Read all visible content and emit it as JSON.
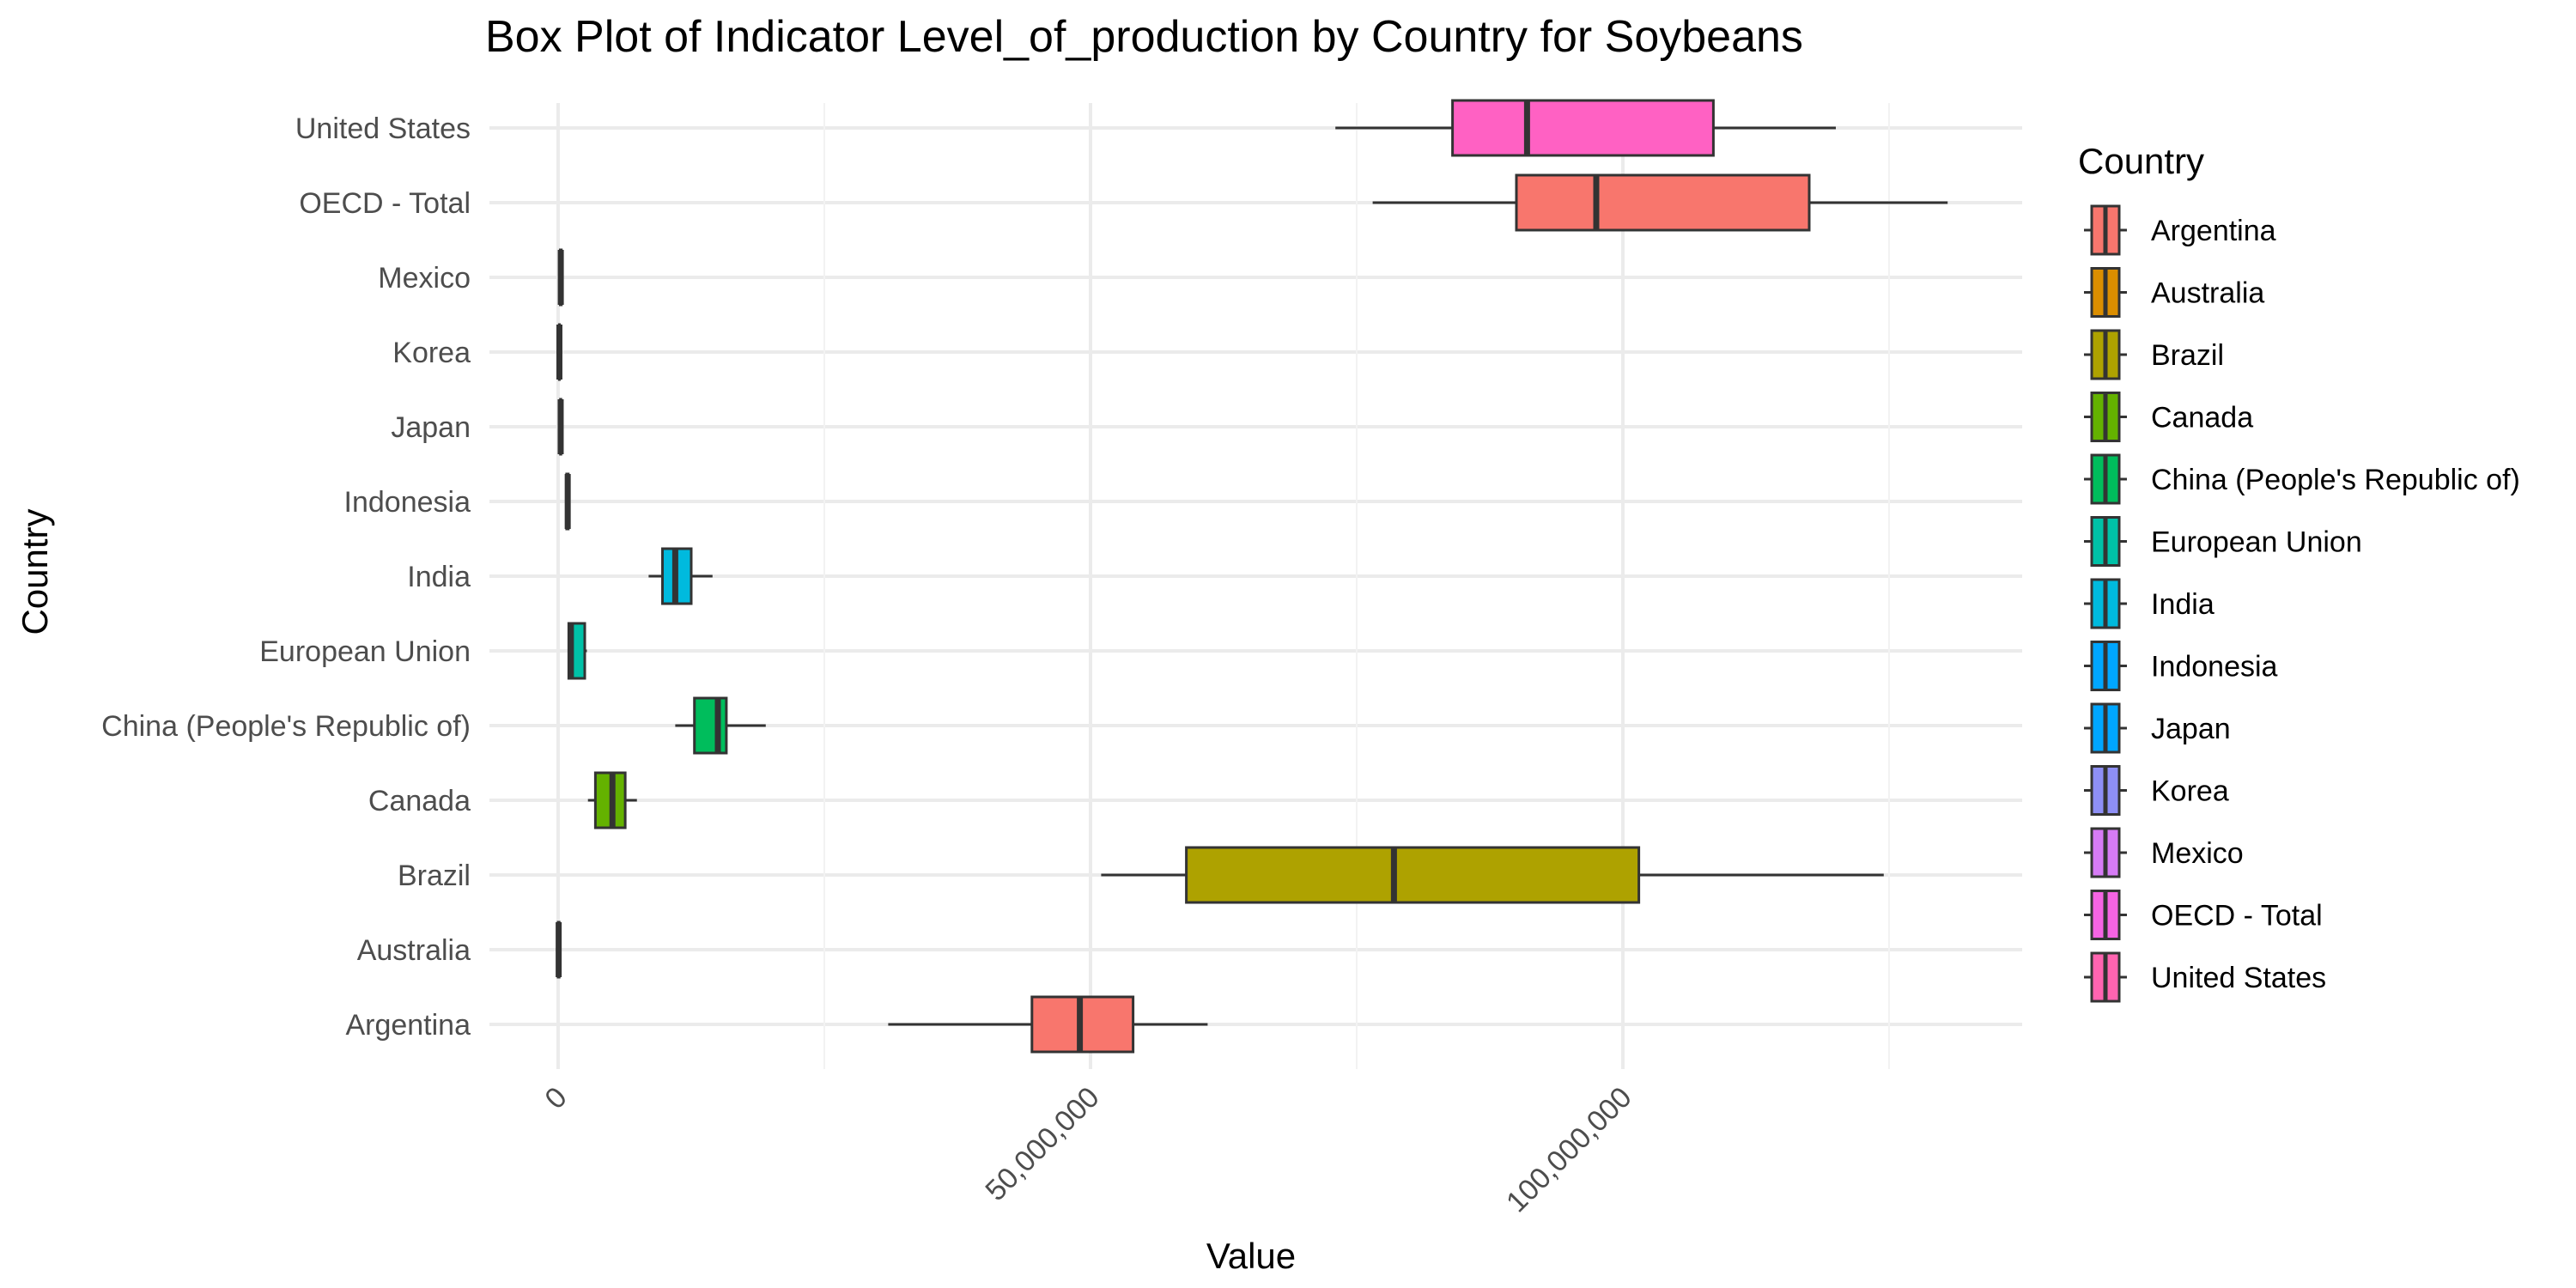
{
  "chart_data": {
    "type": "box",
    "title": "Box Plot of Indicator Level_of_production by Country for Soybeans",
    "xlabel": "Value",
    "ylabel": "Country",
    "xlim": [
      -5000000,
      137000000
    ],
    "x_ticks": [
      {
        "value": 0,
        "label": "0"
      },
      {
        "value": 50000000,
        "label": "50,000,000"
      },
      {
        "value": 100000000,
        "label": "100,000,000"
      }
    ],
    "x_minor_ticks": [
      25000000,
      75000000,
      125000000
    ],
    "grid": true,
    "legend": {
      "title": "Country",
      "position": "right"
    },
    "categories": [
      "Argentina",
      "Australia",
      "Brazil",
      "Canada",
      "China (People's Republic of)",
      "European Union",
      "India",
      "Indonesia",
      "Japan",
      "Korea",
      "Mexico",
      "OECD - Total",
      "United States"
    ],
    "series": [
      {
        "name": "Argentina",
        "color": "#F8766D",
        "min": 31000000,
        "q1": 44500000,
        "median": 49000000,
        "q3": 54000000,
        "max": 61000000
      },
      {
        "name": "Australia",
        "color": "#DB8E00",
        "min": 0,
        "q1": 0,
        "median": 50000,
        "q3": 100000,
        "max": 150000
      },
      {
        "name": "Brazil",
        "color": "#AEA200",
        "min": 51000000,
        "q1": 59000000,
        "median": 78500000,
        "q3": 101500000,
        "max": 124500000
      },
      {
        "name": "Canada",
        "color": "#64B200",
        "min": 2800000,
        "q1": 3500000,
        "median": 5100000,
        "q3": 6300000,
        "max": 7400000
      },
      {
        "name": "China (People's Republic of)",
        "color": "#00BD5C",
        "min": 11000000,
        "q1": 12800000,
        "median": 15000000,
        "q3": 15800000,
        "max": 19500000
      },
      {
        "name": "European Union",
        "color": "#00C1A7",
        "min": 1000000,
        "q1": 1000000,
        "median": 1200000,
        "q3": 2500000,
        "max": 2700000
      },
      {
        "name": "India",
        "color": "#00BADE",
        "min": 8500000,
        "q1": 9800000,
        "median": 11000000,
        "q3": 12500000,
        "max": 14500000
      },
      {
        "name": "Indonesia",
        "color": "#00A6FF",
        "min": 700000,
        "q1": 800000,
        "median": 900000,
        "q3": 950000,
        "max": 1000000
      },
      {
        "name": "Japan",
        "color": "#B385FF",
        "min": 200000,
        "q1": 220000,
        "median": 240000,
        "q3": 260000,
        "max": 280000
      },
      {
        "name": "Korea",
        "color": "#EF67EB",
        "min": 100000,
        "q1": 110000,
        "median": 120000,
        "q3": 130000,
        "max": 140000
      },
      {
        "name": "Mexico",
        "color": "#FF63B6",
        "min": 150000,
        "q1": 200000,
        "median": 250000,
        "q3": 300000,
        "max": 350000
      },
      {
        "name": "OECD - Total",
        "color": "#F8766D",
        "min": 76500000,
        "q1": 90000000,
        "median": 97500000,
        "q3": 117500000,
        "max": 130500000
      },
      {
        "name": "United States",
        "color": "#FF61C3",
        "min": 73000000,
        "q1": 84000000,
        "median": 91000000,
        "q3": 108500000,
        "max": 120000000
      }
    ],
    "legend_colors": [
      "#F8766D",
      "#DB8E00",
      "#AEA200",
      "#64B200",
      "#00BD5C",
      "#00C1A7",
      "#00BADE",
      "#00A6FF",
      "#00A6FF",
      "#8E8FF5",
      "#D67BF5",
      "#F564E3",
      "#FF64B0"
    ]
  }
}
